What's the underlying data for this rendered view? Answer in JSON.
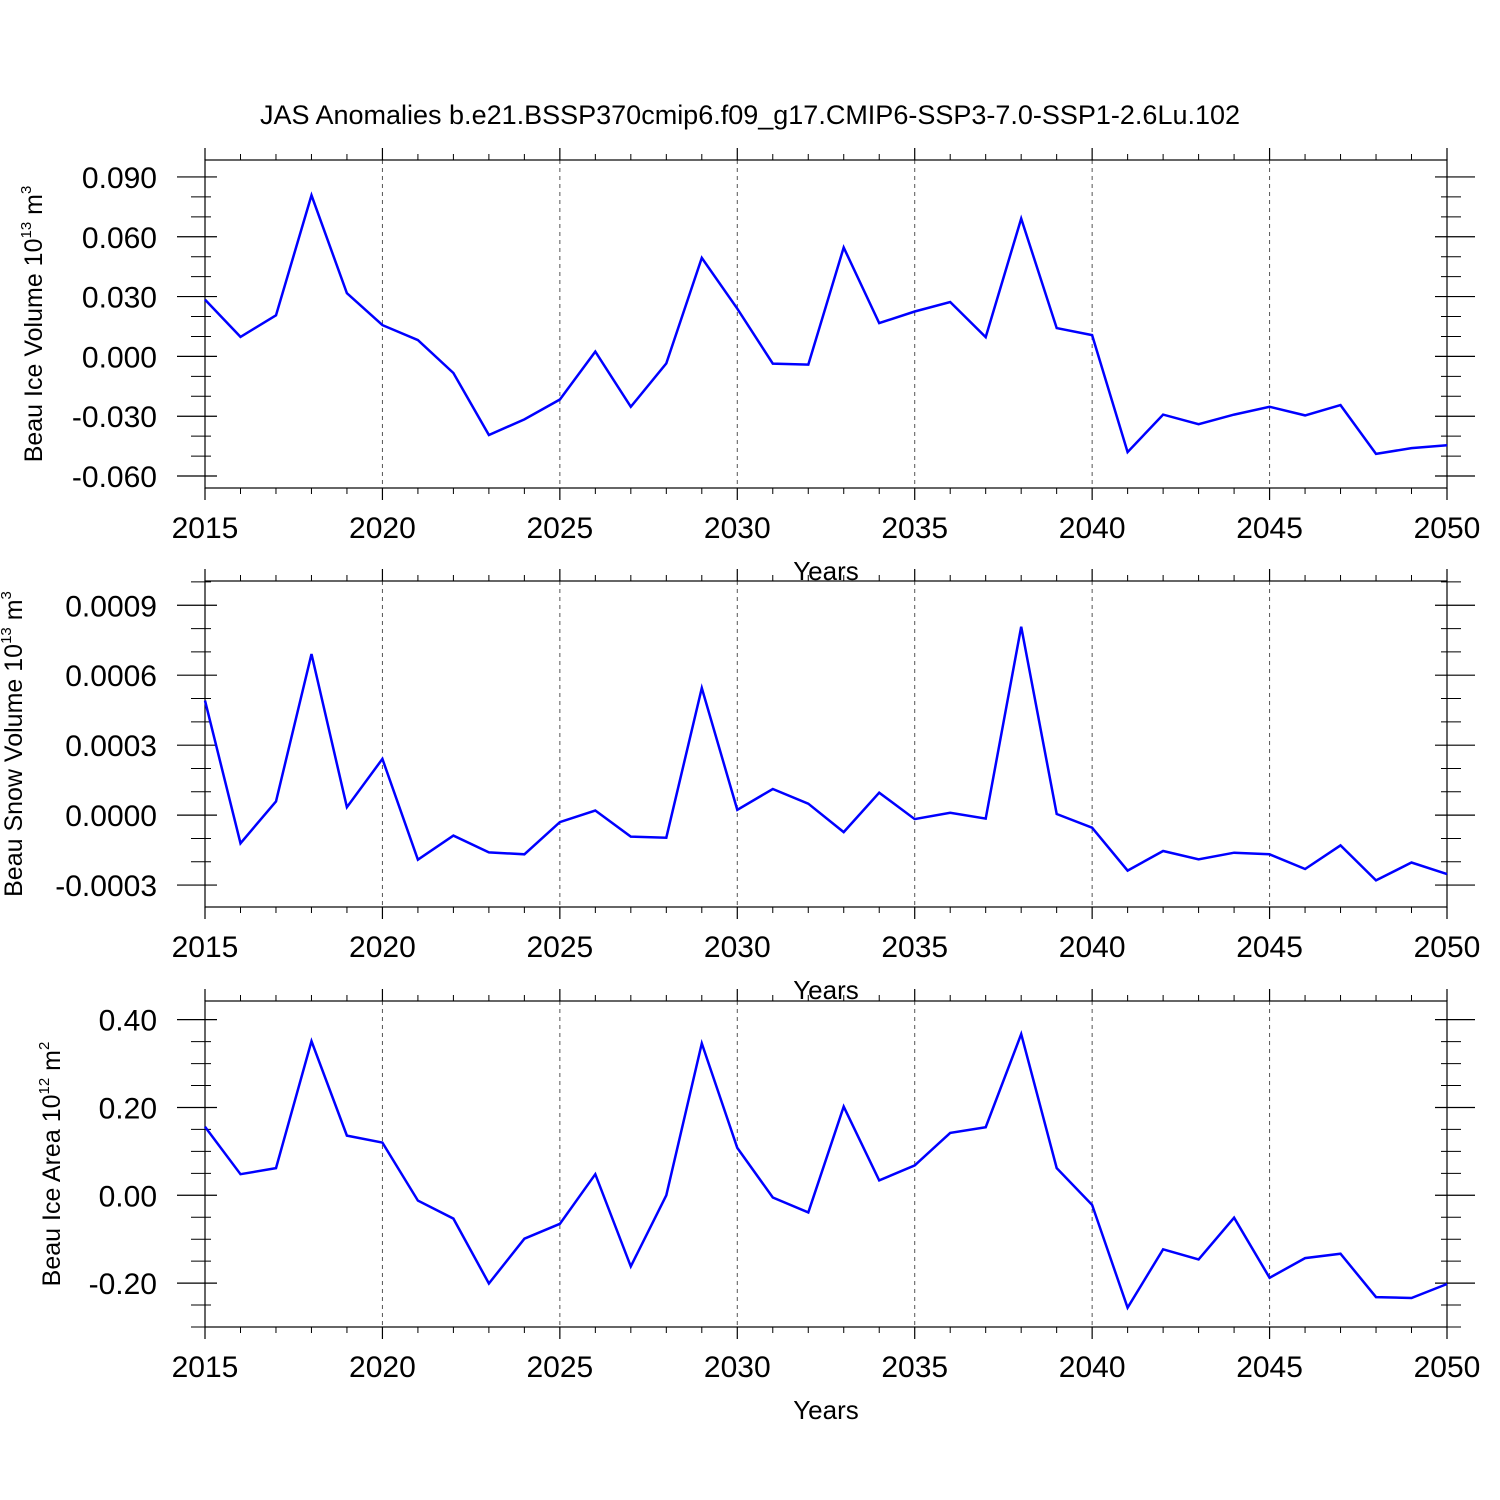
{
  "title": "JAS Anomalies b.e21.BSSP370cmip6.f09_g17.CMIP6-SSP3-7.0-SSP1-2.6Lu.102",
  "line_color": "#0000ff",
  "chart_data": [
    {
      "type": "line",
      "ylabel": {
        "prefix": "Beau Ice Volume 10",
        "exp": "13",
        "unit": " m",
        "unit_exp": "3"
      },
      "xlabel": "Years",
      "xlim": [
        2015,
        2050
      ],
      "ylim": [
        -0.066,
        0.0985
      ],
      "yticks": [
        0.09,
        0.06,
        0.03,
        0.0,
        -0.03,
        -0.06
      ],
      "ytick_labels": [
        "0.090",
        "0.060",
        "0.030",
        "0.000",
        "-0.030",
        "-0.060"
      ],
      "yminor": 0.01,
      "xticks": [
        2015,
        2020,
        2025,
        2030,
        2035,
        2040,
        2045,
        2050
      ],
      "xtick_labels": [
        "2015",
        "2020",
        "2025",
        "2030",
        "2035",
        "2040",
        "2045",
        "2050"
      ],
      "x": [
        2015,
        2016,
        2017,
        2018,
        2019,
        2020,
        2021,
        2022,
        2023,
        2024,
        2025,
        2026,
        2027,
        2028,
        2029,
        2030,
        2031,
        2032,
        2033,
        2034,
        2035,
        2036,
        2037,
        2038,
        2039,
        2040,
        2041,
        2042,
        2043,
        2044,
        2045,
        2046,
        2047,
        2048,
        2049,
        2050
      ],
      "series": [
        {
          "values": [
            0.0285,
            0.0098,
            0.0206,
            0.0808,
            0.0317,
            0.0157,
            0.0082,
            -0.0083,
            -0.0394,
            -0.0316,
            -0.0216,
            0.0024,
            -0.0253,
            -0.0035,
            0.0494,
            0.0239,
            -0.0036,
            -0.0041,
            0.0546,
            0.0167,
            0.0225,
            0.0273,
            0.0097,
            0.0691,
            0.0142,
            0.0107,
            -0.048,
            -0.0292,
            -0.034,
            -0.0292,
            -0.0253,
            -0.0296,
            -0.0244,
            -0.0489,
            -0.046,
            -0.0446
          ]
        }
      ]
    },
    {
      "type": "line",
      "ylabel": {
        "prefix": "Beau Snow Volume 10",
        "exp": "13",
        "unit": " m",
        "unit_exp": "3"
      },
      "xlabel": "Years",
      "xlim": [
        2015,
        2050
      ],
      "ylim": [
        -0.000394,
        0.001004
      ],
      "yticks": [
        0.0009,
        0.0006,
        0.0003,
        0.0,
        -0.0003
      ],
      "ytick_labels": [
        "0.0009",
        "0.0006",
        "0.0003",
        "0.0000",
        "-0.0003"
      ],
      "yminor": 0.0001,
      "xticks": [
        2015,
        2020,
        2025,
        2030,
        2035,
        2040,
        2045,
        2050
      ],
      "xtick_labels": [
        "2015",
        "2020",
        "2025",
        "2030",
        "2035",
        "2040",
        "2045",
        "2050"
      ],
      "x": [
        2015,
        2016,
        2017,
        2018,
        2019,
        2020,
        2021,
        2022,
        2023,
        2024,
        2025,
        2026,
        2027,
        2028,
        2029,
        2030,
        2031,
        2032,
        2033,
        2034,
        2035,
        2036,
        2037,
        2038,
        2039,
        2040,
        2041,
        2042,
        2043,
        2044,
        2045,
        2046,
        2047,
        2048,
        2049,
        2050
      ],
      "series": [
        {
          "values": [
            0.000491,
            -0.000121,
            5.9e-05,
            0.000691,
            3.4e-05,
            0.000241,
            -0.000191,
            -8.8e-05,
            -0.00016,
            -0.000168,
            -3e-05,
            2e-05,
            -9.2e-05,
            -9.7e-05,
            0.000545,
            2.3e-05,
            0.000112,
            4.9e-05,
            -7.3e-05,
            9.6e-05,
            -1.7e-05,
            1e-05,
            -1.5e-05,
            0.000808,
            5e-06,
            -5.4e-05,
            -0.000238,
            -0.000154,
            -0.00019,
            -0.000161,
            -0.000168,
            -0.000231,
            -0.00013,
            -0.00028,
            -0.000203,
            -0.000253
          ]
        }
      ]
    },
    {
      "type": "line",
      "ylabel": {
        "prefix": "Beau Ice Area 10",
        "exp": "12",
        "unit": " m",
        "unit_exp": "2"
      },
      "xlabel": "Years",
      "xlim": [
        2015,
        2050
      ],
      "ylim": [
        -0.3,
        0.4425
      ],
      "yticks": [
        0.4,
        0.2,
        0.0,
        -0.2
      ],
      "ytick_labels": [
        "0.40",
        "0.20",
        "0.00",
        "-0.20"
      ],
      "yminor": 0.05,
      "xticks": [
        2015,
        2020,
        2025,
        2030,
        2035,
        2040,
        2045,
        2050
      ],
      "xtick_labels": [
        "2015",
        "2020",
        "2025",
        "2030",
        "2035",
        "2040",
        "2045",
        "2050"
      ],
      "x": [
        2015,
        2016,
        2017,
        2018,
        2019,
        2020,
        2021,
        2022,
        2023,
        2024,
        2025,
        2026,
        2027,
        2028,
        2029,
        2030,
        2031,
        2032,
        2033,
        2034,
        2035,
        2036,
        2037,
        2038,
        2039,
        2040,
        2041,
        2042,
        2043,
        2044,
        2045,
        2046,
        2047,
        2048,
        2049,
        2050
      ],
      "series": [
        {
          "values": [
            0.156,
            0.048,
            0.062,
            0.351,
            0.136,
            0.12,
            -0.012,
            -0.053,
            -0.201,
            -0.099,
            -0.065,
            0.048,
            -0.162,
            0.0,
            0.346,
            0.108,
            -0.005,
            -0.039,
            0.202,
            0.034,
            0.068,
            0.142,
            0.155,
            0.367,
            0.062,
            -0.022,
            -0.256,
            -0.123,
            -0.146,
            -0.051,
            -0.188,
            -0.143,
            -0.133,
            -0.232,
            -0.234,
            -0.202
          ]
        }
      ]
    }
  ]
}
